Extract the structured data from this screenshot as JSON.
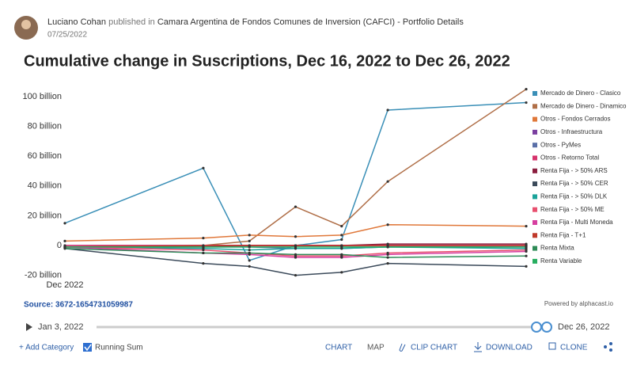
{
  "header": {
    "author": "Luciano Cohan",
    "action": "published in",
    "source_name": "Camara Argentina de Fondos Comunes de Inversion (CAFCI) - Portfolio Details",
    "date": "07/25/2022"
  },
  "chart_data": {
    "type": "line",
    "title": "Cumulative change in Suscriptions, Dec 16, 2022 to Dec 26, 2022",
    "x": [
      16,
      19,
      20,
      21,
      22,
      23,
      26
    ],
    "xlim": [
      16,
      26
    ],
    "xticks": [
      {
        "value": 16,
        "label": "Dec 2022"
      }
    ],
    "ylim": [
      -22,
      108
    ],
    "yticks": [
      {
        "value": -20,
        "label": "-20 billion"
      },
      0,
      {
        "value": 20,
        "label": "20 billion"
      },
      {
        "value": 40,
        "label": "40 billion"
      },
      {
        "value": 60,
        "label": "60 billion"
      },
      {
        "value": 80,
        "label": "80 billion"
      },
      {
        "value": 100,
        "label": "100 billion"
      }
    ],
    "grid": false,
    "legend": "right",
    "series": [
      {
        "name": "Mercado de Dinero - Clasico",
        "color": "#3a8fb7",
        "values": [
          15,
          52,
          -10,
          0,
          4,
          91,
          96
        ]
      },
      {
        "name": "Mercado de Dinero - Dinamico",
        "color": "#b06f48",
        "values": [
          -1,
          0,
          3,
          26,
          13,
          43,
          105
        ]
      },
      {
        "name": "Otros - Fondos Cerrados",
        "color": "#e0783a",
        "values": [
          3,
          5,
          7,
          6,
          7,
          14,
          13
        ]
      },
      {
        "name": "Otros - Infraestructura",
        "color": "#7b3fa0",
        "values": [
          0,
          0,
          0,
          0,
          0,
          0,
          0
        ]
      },
      {
        "name": "Otros - PyMes",
        "color": "#5a6fa8",
        "values": [
          -1,
          -1,
          -1,
          -2,
          -2,
          -1,
          -1
        ]
      },
      {
        "name": "Otros - Retorno Total",
        "color": "#d6336c",
        "values": [
          0,
          0,
          0,
          0,
          0,
          0,
          0
        ]
      },
      {
        "name": "Renta Fija - > 50% ARS",
        "color": "#8b1e3f",
        "values": [
          -1,
          -1,
          0,
          0,
          0,
          1,
          1
        ]
      },
      {
        "name": "Renta Fija - > 50% CER",
        "color": "#3b4a5a",
        "values": [
          -2,
          -12,
          -14,
          -20,
          -18,
          -12,
          -14
        ]
      },
      {
        "name": "Renta Fija - > 50% DLK",
        "color": "#1aa39a",
        "values": [
          -1,
          -2,
          -3,
          -2,
          -2,
          -1,
          -2
        ]
      },
      {
        "name": "Renta Fija - > 50% ME",
        "color": "#e8506f",
        "values": [
          -1,
          -3,
          -5,
          -7,
          -7,
          -5,
          -3
        ]
      },
      {
        "name": "Renta Fija - Multi Moneda",
        "color": "#d63fa0",
        "values": [
          -1,
          -5,
          -6,
          -8,
          -8,
          -6,
          -4
        ]
      },
      {
        "name": "Renta Fija - T+1",
        "color": "#c0392b",
        "values": [
          -1,
          0,
          0,
          0,
          0,
          0,
          0
        ]
      },
      {
        "name": "Renta Mixta",
        "color": "#2e8b57",
        "values": [
          -2,
          -5,
          -5,
          -6,
          -6,
          -8,
          -7
        ]
      },
      {
        "name": "Renta Variable",
        "color": "#27ae60",
        "values": [
          -1,
          -1,
          -1,
          -1,
          -1,
          -1,
          -1
        ]
      }
    ]
  },
  "footer": {
    "source": "Source: 3672-1654731059987",
    "powered": "Powered by alphacast.io",
    "slider_start": "Jan 3, 2022",
    "slider_end": "Dec 26, 2022"
  },
  "toolbar": {
    "add_category": "+ Add Category",
    "running_sum": "Running Sum",
    "chart": "CHART",
    "map": "MAP",
    "clip_chart": "CLIP CHART",
    "download": "DOWNLOAD",
    "clone": "CLONE"
  }
}
